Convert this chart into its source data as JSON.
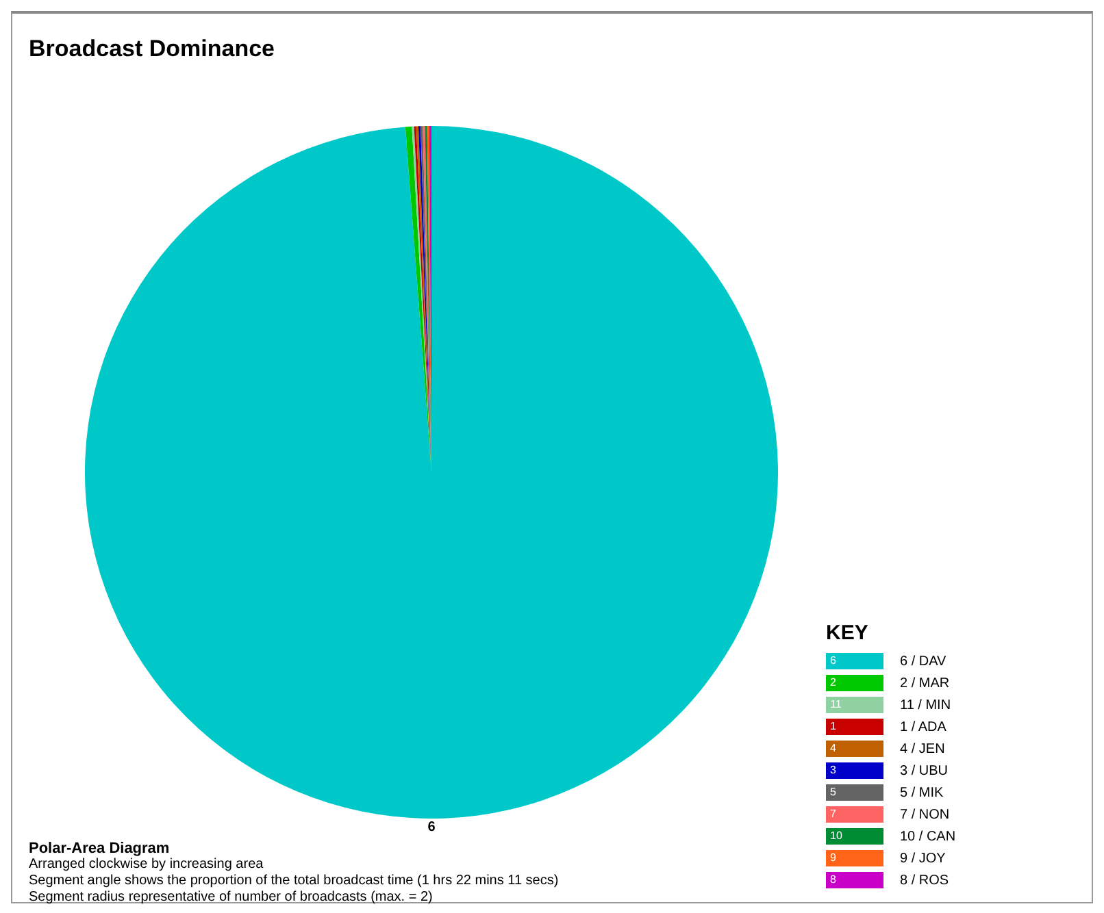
{
  "chart_data": {
    "type": "pie",
    "title": "Broadcast Dominance",
    "legend_title": "KEY",
    "legend": "bottom right",
    "categories": [
      "6 / DAV",
      "2 / MAR",
      "11 / MIN",
      "1 / ADA",
      "4 / JEN",
      "3 / UBU",
      "5 / MIK",
      "7 / NON",
      "10 / CAN",
      "9 / JOY",
      "8 / ROS"
    ],
    "values": [
      98.7,
      0.3,
      0.1,
      0.1,
      0.1,
      0.1,
      0.1,
      0.1,
      0.1,
      0.1,
      0.1
    ],
    "colors": [
      "#00c8c8",
      "#00c800",
      "#8fd1a0",
      "#c80000",
      "#c06000",
      "#0000c8",
      "#646464",
      "#ff6464",
      "#008c32",
      "#ff6419",
      "#c800c8"
    ],
    "annotations": [
      "6",
      "Polar-Area Diagram",
      "Arranged clockwise by increasing area",
      "Segment angle shows the proportion of the total broadcast time (1 hrs 22 mins 11 secs)",
      "Segment radius representative of number of broadcasts (max. = 2)",
      "6",
      "2",
      "11",
      "1",
      "4",
      "3",
      "5",
      "7",
      "10",
      "9",
      "8"
    ]
  }
}
